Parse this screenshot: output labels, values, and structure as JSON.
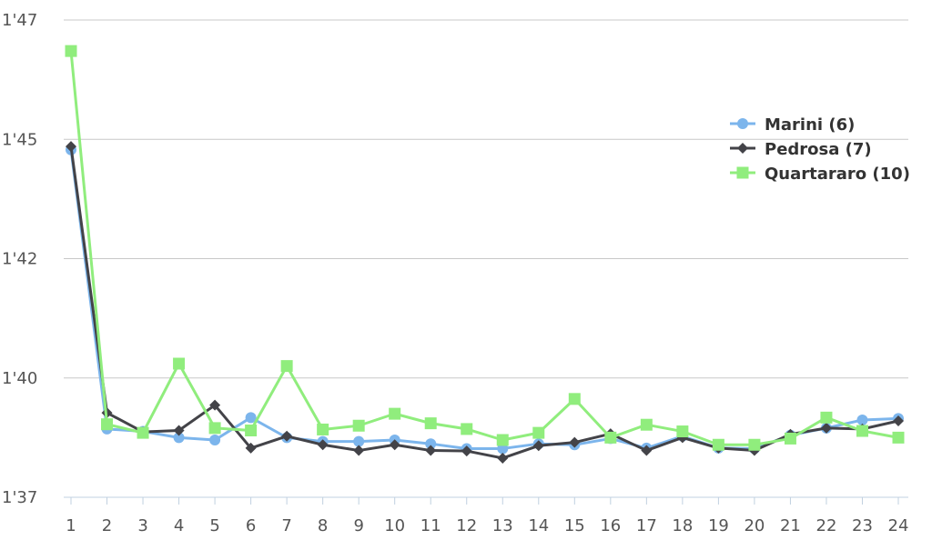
{
  "chart_data": {
    "type": "line",
    "title": "",
    "xlabel": "",
    "ylabel": "",
    "x": [
      1,
      2,
      3,
      4,
      5,
      6,
      7,
      8,
      9,
      10,
      11,
      12,
      13,
      14,
      15,
      16,
      17,
      18,
      19,
      20,
      21,
      22,
      23,
      24
    ],
    "y_ticks": [
      {
        "value": 97,
        "label": "1'37"
      },
      {
        "value": 99.5,
        "label": "1'40"
      },
      {
        "value": 102,
        "label": "1'42"
      },
      {
        "value": 104.5,
        "label": "1'45"
      },
      {
        "value": 107,
        "label": "1'47"
      }
    ],
    "ylim": [
      97,
      107
    ],
    "grid": true,
    "legend_position": "right",
    "series": [
      {
        "name": "Marini (6)",
        "color": "#7cb5ec",
        "marker": "circle",
        "values": [
          104.28,
          98.43,
          98.38,
          98.25,
          98.2,
          98.67,
          98.25,
          98.17,
          98.17,
          98.2,
          98.12,
          98.02,
          98.02,
          98.12,
          98.1,
          98.23,
          98.03,
          98.28,
          98.03,
          98.02,
          98.3,
          98.45,
          98.62,
          98.65
        ]
      },
      {
        "name": "Pedrosa (7)",
        "color": "#434348",
        "marker": "diamond",
        "values": [
          104.35,
          98.77,
          98.37,
          98.4,
          98.93,
          98.03,
          98.28,
          98.1,
          97.98,
          98.1,
          97.98,
          97.97,
          97.82,
          98.08,
          98.15,
          98.33,
          97.98,
          98.25,
          98.03,
          97.98,
          98.32,
          98.45,
          98.43,
          98.6
        ]
      },
      {
        "name": "Quartararo (10)",
        "color": "#90ed7d",
        "marker": "square",
        "values": [
          106.35,
          98.53,
          98.35,
          99.8,
          98.45,
          98.4,
          99.75,
          98.42,
          98.5,
          98.75,
          98.55,
          98.43,
          98.2,
          98.35,
          99.06,
          98.25,
          98.52,
          98.38,
          98.1,
          98.1,
          98.23,
          98.67,
          98.39,
          98.25
        ]
      }
    ]
  }
}
